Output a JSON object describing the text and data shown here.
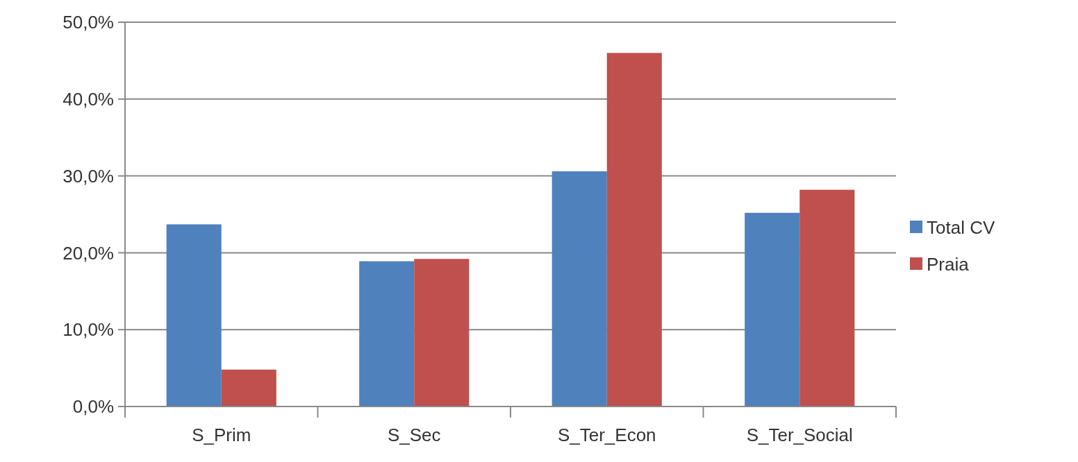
{
  "chart_data": {
    "type": "bar",
    "categories": [
      "S_Prim",
      "S_Sec",
      "S_Ter_Econ",
      "S_Ter_Social"
    ],
    "series": [
      {
        "name": "Total CV",
        "color": "#4f81bd",
        "values": [
          23.7,
          18.9,
          30.6,
          25.2
        ]
      },
      {
        "name": "Praia",
        "color": "#c0504d",
        "values": [
          4.8,
          19.2,
          46.0,
          28.2
        ]
      }
    ],
    "ylim": [
      0,
      50
    ],
    "yticks": [
      {
        "value": 0,
        "label": "0,0%"
      },
      {
        "value": 10,
        "label": "10,0%"
      },
      {
        "value": 20,
        "label": "20,0%"
      },
      {
        "value": 30,
        "label": "30,0%"
      },
      {
        "value": 40,
        "label": "40,0%"
      },
      {
        "value": 50,
        "label": "50,0%"
      }
    ],
    "grid": "y",
    "legend": "right"
  }
}
